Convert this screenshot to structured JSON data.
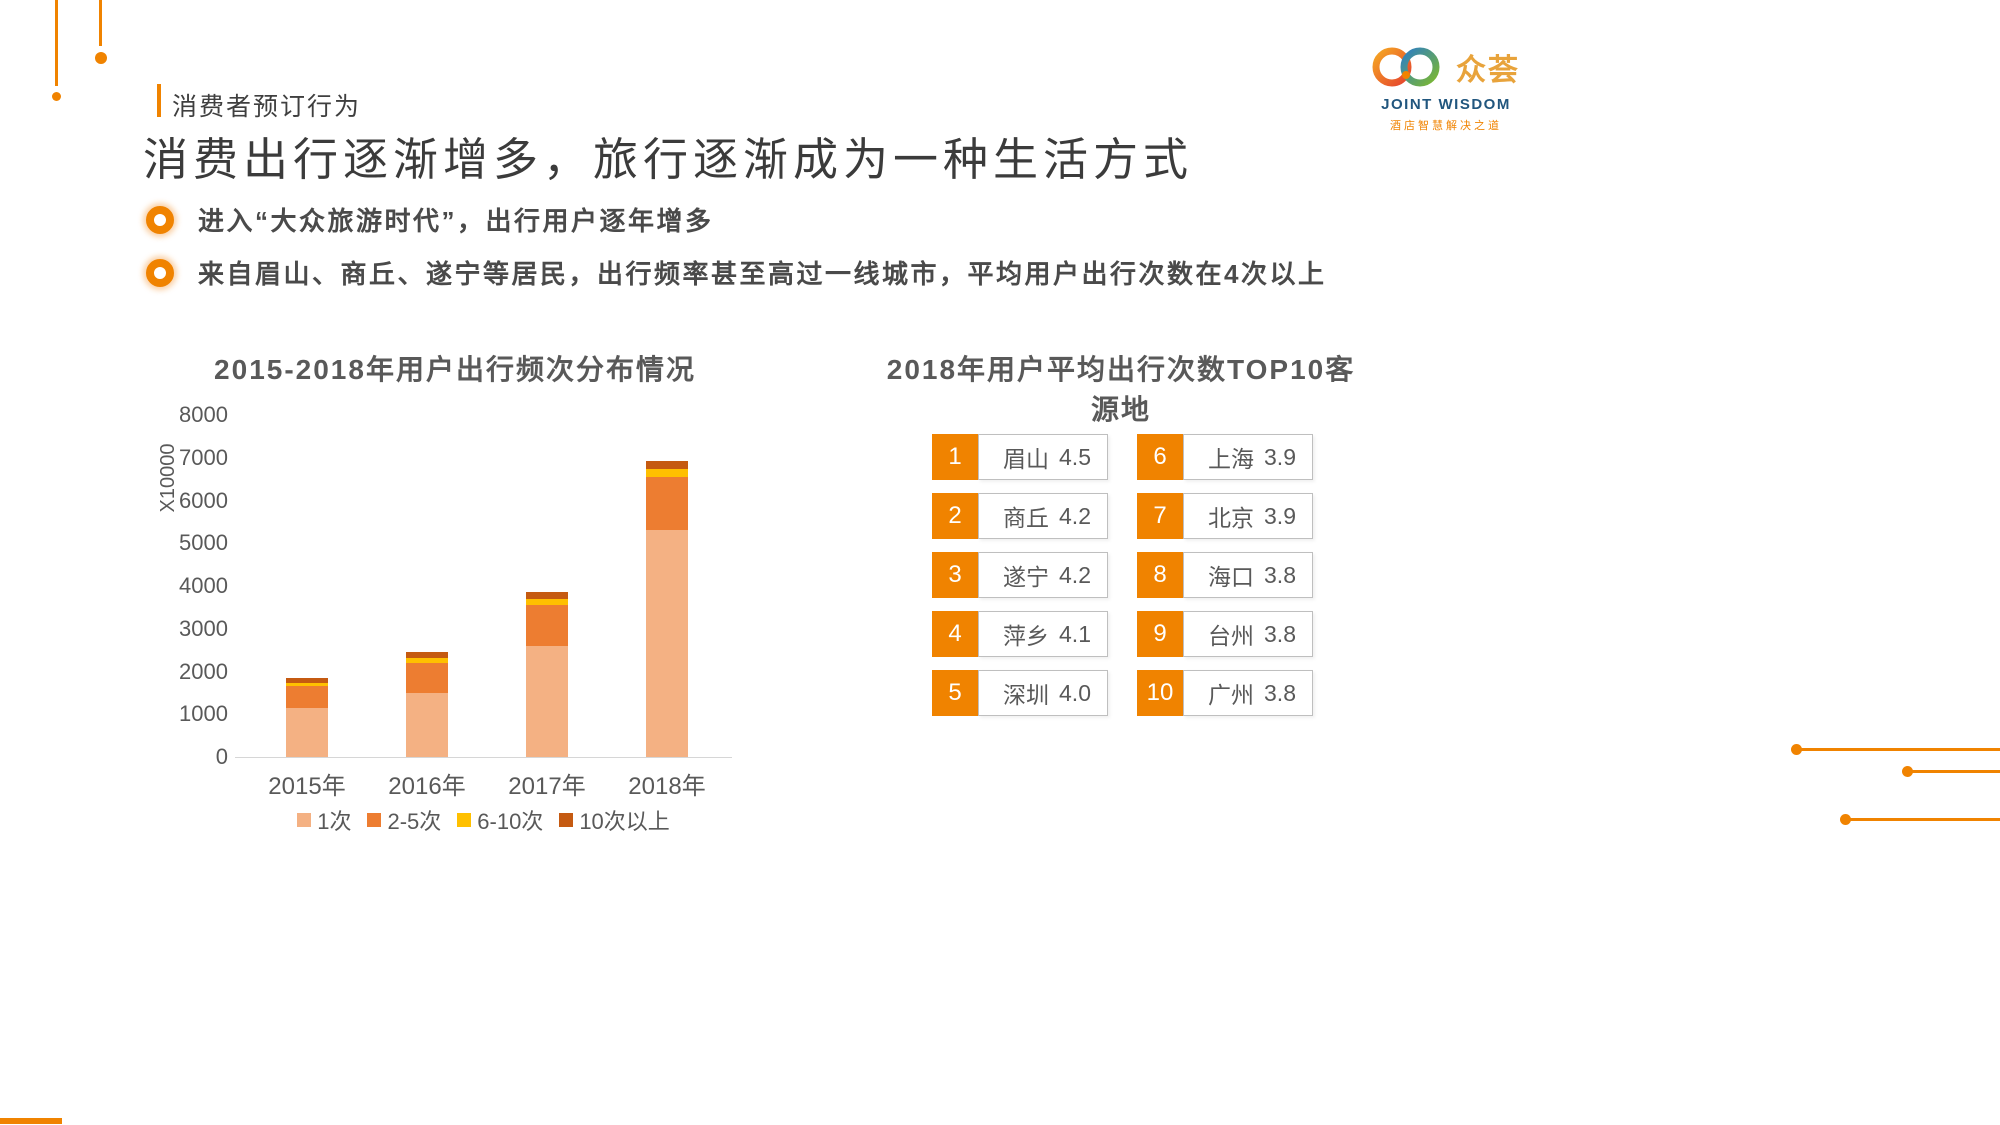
{
  "page": {
    "eyebrow": "消费者预订行为",
    "title": "消费出行逐渐增多，旅行逐渐成为一种生活方式",
    "bullets": [
      "进入“大众旅游时代”，出行用户逐年增多",
      "来自眉山、商丘、遂宁等居民，出行频率甚至高过一线城市，平均用户出行次数在4次以上"
    ]
  },
  "logo": {
    "name": "众荟",
    "subtitle": "JOINT WISDOM",
    "tagline": "酒店智慧解决之道"
  },
  "colors": {
    "accent": "#F08300",
    "text_dark": "#3F3F3F",
    "text_gray": "#595959",
    "box_border": "#BFBFBF",
    "logo_blue": "#21567E"
  },
  "chart_data": [
    {
      "type": "bar",
      "stacked": true,
      "title": "2015-2018年用户出行频次分布情况",
      "categories": [
        "2015年",
        "2016年",
        "2017年",
        "2018年"
      ],
      "series": [
        {
          "name": "1次",
          "color": "#F4B183",
          "values": [
            1150,
            1500,
            2600,
            5300
          ]
        },
        {
          "name": "2-5次",
          "color": "#ED7D31",
          "values": [
            500,
            700,
            950,
            1250
          ]
        },
        {
          "name": "6-10次",
          "color": "#FFC000",
          "values": [
            90,
            120,
            150,
            180
          ]
        },
        {
          "name": "10次以上",
          "color": "#C55A11",
          "values": [
            100,
            130,
            150,
            200
          ]
        }
      ],
      "xlabel": "",
      "ylabel": "X10000",
      "ylim": [
        0,
        8000
      ],
      "ytick_step": 1000,
      "grid": false,
      "legend_position": "bottom"
    },
    {
      "type": "table",
      "title": "2018年用户平均出行次数TOP10客源地",
      "items": [
        {
          "rank": "1",
          "city": "眉山",
          "value": "4.5"
        },
        {
          "rank": "2",
          "city": "商丘",
          "value": "4.2"
        },
        {
          "rank": "3",
          "city": "遂宁",
          "value": "4.2"
        },
        {
          "rank": "4",
          "city": "萍乡",
          "value": "4.1"
        },
        {
          "rank": "5",
          "city": "深圳",
          "value": "4.0"
        },
        {
          "rank": "6",
          "city": "上海",
          "value": "3.9"
        },
        {
          "rank": "7",
          "city": "北京",
          "value": "3.9"
        },
        {
          "rank": "8",
          "city": "海口",
          "value": "3.8"
        },
        {
          "rank": "9",
          "city": "台州",
          "value": "3.8"
        },
        {
          "rank": "10",
          "city": "广州",
          "value": "3.8"
        }
      ]
    }
  ]
}
